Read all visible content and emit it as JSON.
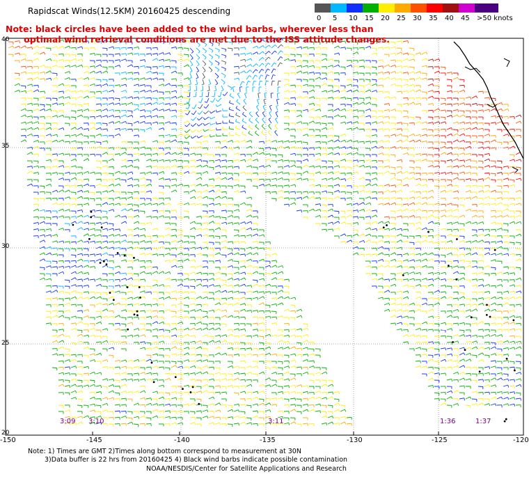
{
  "title": "Rapidscat Winds(12.5KM) 20160425 descending",
  "note_line1": "Note: black circles have been added to the wind barbs, wherever less than",
  "note_line2": "      optimal wind retrieval conditions are met due to the ISS attitude changes.",
  "colorbar": {
    "labels": [
      "0",
      "5",
      "10",
      "15",
      "20",
      "25",
      "30",
      "35",
      "40",
      "45",
      ">50 knots"
    ],
    "colors": [
      "#555555",
      "#00b8ff",
      "#1030ff",
      "#00b000",
      "#ffee00",
      "#ffaa00",
      "#ff5000",
      "#ff0000",
      "#a01010",
      "#d000d0",
      "#4b0082"
    ]
  },
  "lat_labels": [
    "40",
    "35",
    "30",
    "25",
    "20"
  ],
  "lon_labels": [
    "-150",
    "-145",
    "-140",
    "-135",
    "-130",
    "-125",
    "-120"
  ],
  "time_labels": [
    "3:09",
    "3:10",
    "3:11",
    "1:36",
    "1:37"
  ],
  "footer_line1": "Note: 1) Times are GMT 2)Times along bottom correspond to measurement at 30N",
  "footer_line2": "3)Data buffer is 22 hrs from 20160425 4) Black wind barbs indicate possible contamination",
  "footer_line3": "NOAA/NESDIS/Center for Satellite Applications and Research"
}
